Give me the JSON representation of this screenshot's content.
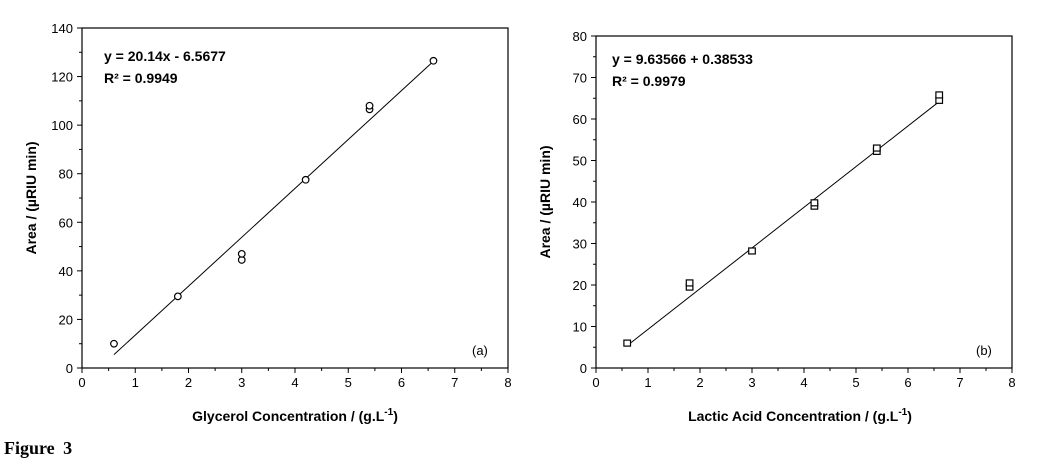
{
  "figure_caption": "Figure  3",
  "chart_data": [
    {
      "type": "scatter",
      "panel_label": "(a)",
      "xlabel": "Glycerol Concentration / (g.L",
      "xlabel_sup": "-1",
      "xlabel_close": ")",
      "ylabel": "Area / (µRIU min)",
      "xlim": [
        0,
        8
      ],
      "ylim": [
        0,
        140
      ],
      "xticks": [
        0,
        1,
        2,
        3,
        4,
        5,
        6,
        7,
        8
      ],
      "yticks": [
        0,
        20,
        40,
        60,
        80,
        100,
        120,
        140
      ],
      "equation": "y = 20.14x - 6.5677",
      "r2": "R² = 0.9949",
      "marker": "circle",
      "series": [
        {
          "points": [
            [
              0.6,
              10.0
            ],
            [
              1.8,
              29.5
            ],
            [
              3.0,
              44.5
            ],
            [
              3.0,
              47.0
            ],
            [
              4.2,
              77.5
            ],
            [
              5.4,
              106.5
            ],
            [
              5.4,
              108.0
            ],
            [
              6.6,
              126.5
            ]
          ]
        }
      ],
      "fit_line": [
        [
          0.6,
          5.5
        ],
        [
          6.6,
          126.3
        ]
      ]
    },
    {
      "type": "scatter",
      "panel_label": "(b)",
      "xlabel": "Lactic Acid Concentration / (g.L",
      "xlabel_sup": "-1",
      "xlabel_close": ")",
      "ylabel": "Area / (µRIU min)",
      "xlim": [
        0,
        8
      ],
      "ylim": [
        0,
        80
      ],
      "xticks": [
        0,
        1,
        2,
        3,
        4,
        5,
        6,
        7,
        8
      ],
      "yticks": [
        0,
        10,
        20,
        30,
        40,
        50,
        60,
        70,
        80
      ],
      "equation": "y = 9.63566 + 0.38533",
      "r2": "R² = 0.9979",
      "marker": "square",
      "series": [
        {
          "points": [
            [
              0.6,
              6.0
            ],
            [
              1.8,
              19.5
            ],
            [
              1.8,
              20.5
            ],
            [
              3.0,
              28.2
            ],
            [
              4.2,
              39.0
            ],
            [
              4.2,
              39.8
            ],
            [
              5.4,
              52.2
            ],
            [
              5.4,
              53.0
            ],
            [
              6.6,
              64.5
            ],
            [
              6.6,
              65.8
            ]
          ]
        }
      ],
      "fit_line": [
        [
          0.6,
          5.4
        ],
        [
          6.6,
          64.2
        ]
      ]
    }
  ]
}
